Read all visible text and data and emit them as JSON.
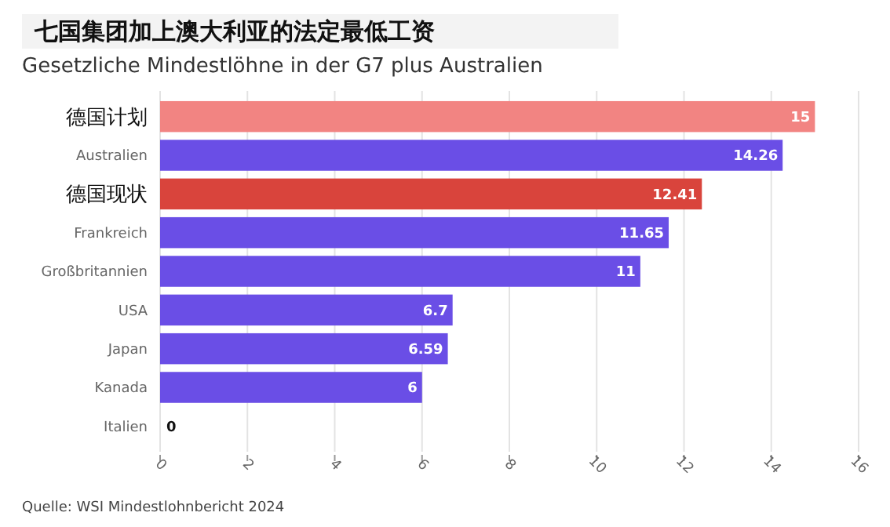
{
  "chart_data": {
    "type": "bar",
    "orientation": "horizontal",
    "title": "七国集团加上澳大利亚的法定最低工资",
    "subtitle": "Gesetzliche Mindestlöhne in der G7 plus Australien",
    "categories": [
      "德国计划",
      "Australien",
      "德国现状",
      "Frankreich",
      "Großbritannien",
      "USA",
      "Japan",
      "Kanada",
      "Italien"
    ],
    "values": [
      15,
      14.26,
      12.41,
      11.65,
      11,
      6.7,
      6.59,
      6,
      0
    ],
    "colors": [
      "#f28482",
      "#6a4ee6",
      "#d9443c",
      "#6a4ee6",
      "#6a4ee6",
      "#6a4ee6",
      "#6a4ee6",
      "#6a4ee6",
      "#6a4ee6"
    ],
    "xlim": [
      0,
      16
    ],
    "xticks": [
      0,
      2,
      4,
      6,
      8,
      10,
      12,
      14,
      16
    ],
    "grid": "x",
    "data_labels": true,
    "annotations": [
      "Quelle: WSI Mindestlohnbericht 2024"
    ]
  }
}
